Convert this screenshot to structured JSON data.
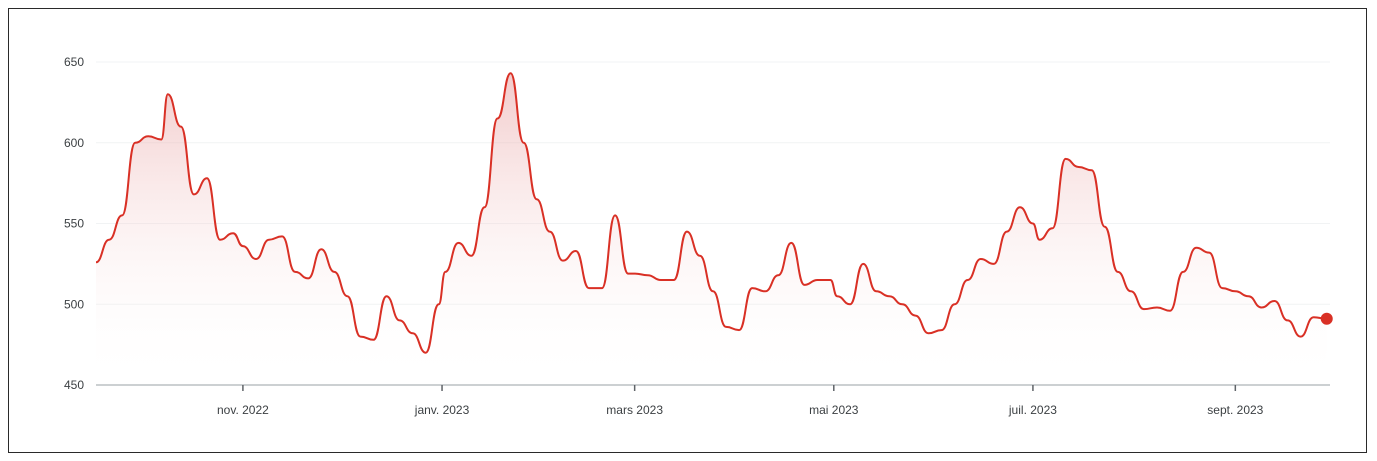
{
  "chart_data": {
    "type": "area",
    "title": "",
    "xlabel": "",
    "ylabel": "",
    "x_range": [
      "2022-09-17",
      "2023-09-30"
    ],
    "ylim": [
      450,
      650
    ],
    "yticks": [
      450,
      500,
      550,
      600,
      650
    ],
    "xticks": [
      {
        "label": "nov. 2022",
        "date": "2022-11-01"
      },
      {
        "label": "janv. 2023",
        "date": "2023-01-01"
      },
      {
        "label": "mars 2023",
        "date": "2023-03-01"
      },
      {
        "label": "mai 2023",
        "date": "2023-05-01"
      },
      {
        "label": "juil. 2023",
        "date": "2023-07-01"
      },
      {
        "label": "sept. 2023",
        "date": "2023-09-01"
      }
    ],
    "grid": true,
    "legend": "none",
    "colors": {
      "line": "#d93025",
      "fill": "#f6d2d2",
      "axis": "#9aa0a6",
      "grid": "#f1f3f4"
    },
    "series": [
      {
        "x": [
          "2022-09-17",
          "2022-09-21",
          "2022-09-25",
          "2022-09-29",
          "2022-10-03",
          "2022-10-07",
          "2022-10-09",
          "2022-10-13",
          "2022-10-17",
          "2022-10-21",
          "2022-10-25",
          "2022-10-29",
          "2022-11-01",
          "2022-11-05",
          "2022-11-09",
          "2022-11-13",
          "2022-11-17",
          "2022-11-21",
          "2022-11-25",
          "2022-11-29",
          "2022-12-03",
          "2022-12-07",
          "2022-12-11",
          "2022-12-15",
          "2022-12-19",
          "2022-12-23",
          "2022-12-27",
          "2022-12-31",
          "2023-01-02",
          "2023-01-06",
          "2023-01-10",
          "2023-01-14",
          "2023-01-18",
          "2023-01-22",
          "2023-01-26",
          "2023-01-30",
          "2023-02-03",
          "2023-02-07",
          "2023-02-11",
          "2023-02-15",
          "2023-02-19",
          "2023-02-23",
          "2023-02-27",
          "2023-03-01",
          "2023-03-05",
          "2023-03-09",
          "2023-03-13",
          "2023-03-17",
          "2023-03-21",
          "2023-03-25",
          "2023-03-29",
          "2023-04-02",
          "2023-04-06",
          "2023-04-10",
          "2023-04-14",
          "2023-04-18",
          "2023-04-22",
          "2023-04-26",
          "2023-04-30",
          "2023-05-02",
          "2023-05-06",
          "2023-05-10",
          "2023-05-14",
          "2023-05-18",
          "2023-05-22",
          "2023-05-26",
          "2023-05-30",
          "2023-06-03",
          "2023-06-07",
          "2023-06-11",
          "2023-06-15",
          "2023-06-19",
          "2023-06-23",
          "2023-06-27",
          "2023-07-01",
          "2023-07-03",
          "2023-07-07",
          "2023-07-11",
          "2023-07-15",
          "2023-07-19",
          "2023-07-23",
          "2023-07-27",
          "2023-07-31",
          "2023-08-04",
          "2023-08-08",
          "2023-08-12",
          "2023-08-16",
          "2023-08-20",
          "2023-08-24",
          "2023-08-28",
          "2023-09-01",
          "2023-09-05",
          "2023-09-09",
          "2023-09-13",
          "2023-09-17",
          "2023-09-21",
          "2023-09-25",
          "2023-09-29"
        ],
        "values": [
          526,
          540,
          555,
          600,
          604,
          602,
          630,
          610,
          568,
          578,
          540,
          544,
          536,
          528,
          540,
          542,
          520,
          516,
          534,
          520,
          505,
          480,
          478,
          505,
          490,
          482,
          470,
          500,
          520,
          538,
          530,
          560,
          615,
          643,
          600,
          565,
          545,
          527,
          533,
          510,
          510,
          555,
          519,
          519,
          518,
          515,
          515,
          545,
          530,
          508,
          486,
          484,
          510,
          508,
          518,
          538,
          512,
          515,
          515,
          505,
          500,
          525,
          508,
          505,
          500,
          493,
          482,
          484,
          500,
          515,
          528,
          525,
          545,
          560,
          550,
          540,
          547,
          590,
          585,
          583,
          548,
          520,
          508,
          497,
          498,
          496,
          520,
          535,
          532,
          510,
          508,
          505,
          498,
          502,
          490,
          480,
          492,
          491
        ]
      }
    ]
  }
}
